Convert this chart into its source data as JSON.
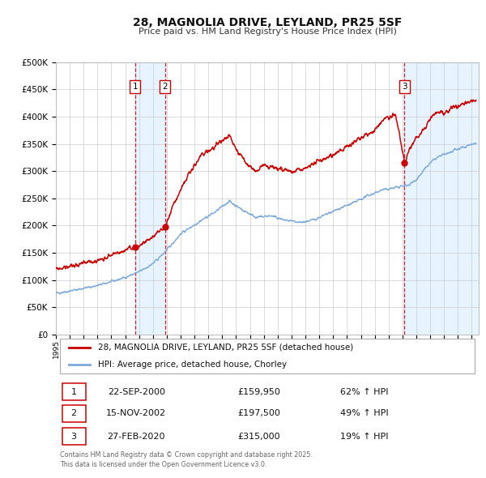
{
  "title": "28, MAGNOLIA DRIVE, LEYLAND, PR25 5SF",
  "subtitle": "Price paid vs. HM Land Registry's House Price Index (HPI)",
  "ylim": [
    0,
    500000
  ],
  "yticks": [
    0,
    50000,
    100000,
    150000,
    200000,
    250000,
    300000,
    350000,
    400000,
    450000,
    500000
  ],
  "xlim_start": 1995.0,
  "xlim_end": 2025.5,
  "legend_line1": "28, MAGNOLIA DRIVE, LEYLAND, PR25 5SF (detached house)",
  "legend_line2": "HPI: Average price, detached house, Chorley",
  "sale_color": "#cc0000",
  "hpi_color": "#7aaadd",
  "transactions": [
    {
      "num": 1,
      "date_label": "22-SEP-2000",
      "price": 159950,
      "pct": "62%",
      "x_year": 2000.72
    },
    {
      "num": 2,
      "date_label": "15-NOV-2002",
      "price": 197500,
      "pct": "49%",
      "x_year": 2002.87
    },
    {
      "num": 3,
      "date_label": "27-FEB-2020",
      "price": 315000,
      "pct": "19%",
      "x_year": 2020.15
    }
  ],
  "footer": "Contains HM Land Registry data © Crown copyright and database right 2025.\nThis data is licensed under the Open Government Licence v3.0.",
  "background_color": "#ffffff",
  "grid_color": "#cccccc",
  "shade_color": "#ddeeff"
}
